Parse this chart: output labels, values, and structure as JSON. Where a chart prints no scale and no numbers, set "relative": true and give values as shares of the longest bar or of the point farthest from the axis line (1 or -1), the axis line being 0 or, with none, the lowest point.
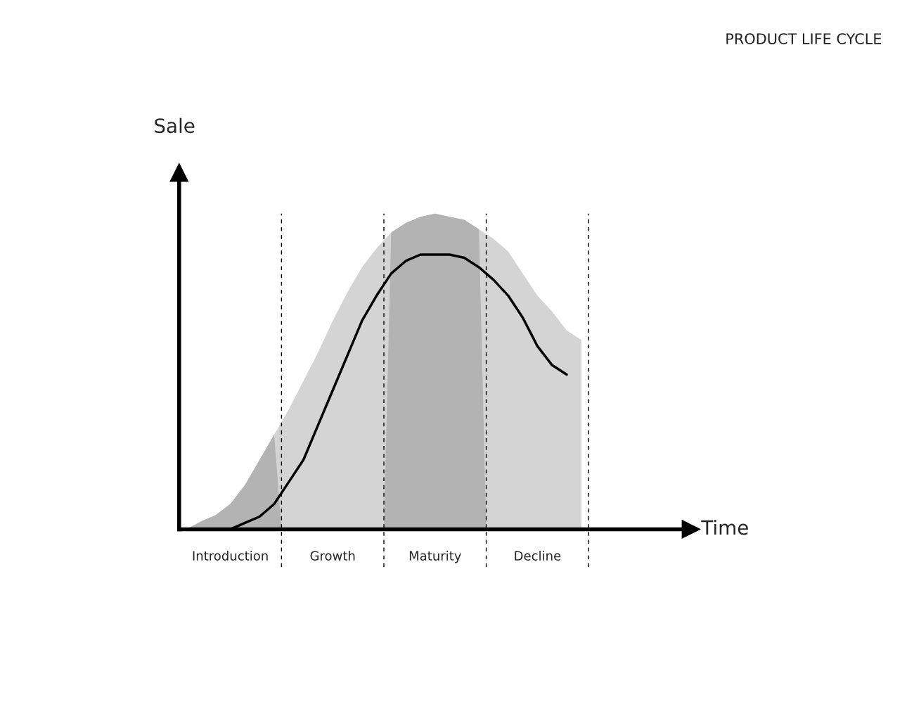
{
  "chart_data": {
    "type": "area",
    "title": "PRODUCT LIFE CYCLE",
    "ylabel": "Sale",
    "relative": true,
    "categories": [
      null,
      null,
      null,
      "Introduction",
      null,
      null,
      null,
      null,
      null,
      null,
      "Growth",
      null,
      null,
      null,
      null,
      null,
      null,
      "Maturity",
      null,
      null,
      null,
      null,
      null,
      null,
      "Decline",
      null,
      null,
      null
    ],
    "series": [
      {
        "color": "#b3b3b3",
        "values": [
          0,
          0.025,
          0.045,
          0.08,
          0.14,
          0.22,
          0.3,
          0.38,
          0.47,
          0.56,
          0.66,
          0.75,
          0.83,
          0.89,
          0.94,
          0.97,
          0.99,
          1.0,
          0.99,
          0.98,
          0.95,
          0.92,
          0.88,
          0.81,
          0.74,
          0.69,
          0.63,
          0.6
        ]
      },
      {
        "type": "line",
        "color": "#000000",
        "values": [
          0,
          0,
          0,
          0,
          0.02,
          0.04,
          0.08,
          0.15,
          0.22,
          0.33,
          0.44,
          0.55,
          0.66,
          0.74,
          0.81,
          0.85,
          0.87,
          0.87,
          0.87,
          0.86,
          0.83,
          0.79,
          0.74,
          0.67,
          0.58,
          0.52,
          0.49,
          null
        ]
      }
    ],
    "annotations": [
      "Time"
    ],
    "legend": false,
    "tick_labels": "x"
  }
}
